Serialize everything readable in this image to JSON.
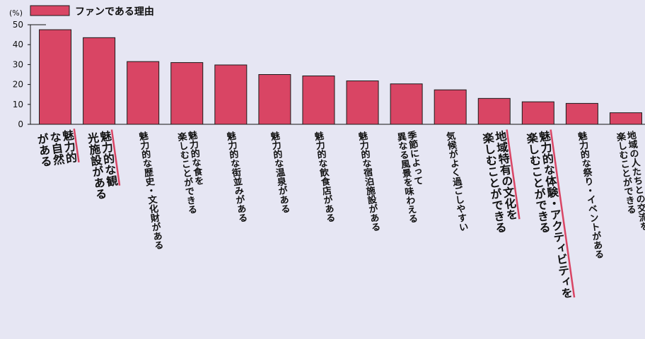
{
  "chart_data": {
    "type": "bar",
    "unit_label": "(%)",
    "legend": {
      "label": "ファンである理由",
      "color": "#d94564"
    },
    "ylim": [
      0,
      50
    ],
    "yticks": [
      0,
      10,
      20,
      30,
      40,
      50
    ],
    "grid": false,
    "categories": [
      [
        "魅力的",
        "な自然",
        "がある"
      ],
      [
        "魅力的な観",
        "光施設がある"
      ],
      [
        "魅力的な歴史・文化財がある"
      ],
      [
        "魅力的な食を",
        "楽しむことができる"
      ],
      [
        "魅力的な街並みがある"
      ],
      [
        "魅力的な温泉がある"
      ],
      [
        "魅力的な飲食店がある"
      ],
      [
        "魅力的な宿泊施設がある"
      ],
      [
        "季節によって",
        "異なる風景を味わえる"
      ],
      [
        "気候がよく過ごしやすい"
      ],
      [
        "地域特有の文化を",
        "楽しむことができる"
      ],
      [
        "魅力的な体験・アクティビティを",
        "楽しむことができる"
      ],
      [
        "魅力的な祭り・イベントがある"
      ],
      [
        "地域の人たちとの交流を",
        "楽しむことができる"
      ]
    ],
    "values": [
      47.5,
      43.5,
      31.5,
      31,
      29.8,
      25,
      24.3,
      21.8,
      20.3,
      17.3,
      13,
      11.3,
      10.5,
      5.8
    ],
    "highlighted": [
      true,
      true,
      false,
      false,
      false,
      false,
      false,
      false,
      false,
      false,
      true,
      true,
      false,
      false
    ],
    "bar_color": "#d94564",
    "bar_stroke": "#1a1a1a",
    "highlight_line_color": "#d94564"
  }
}
